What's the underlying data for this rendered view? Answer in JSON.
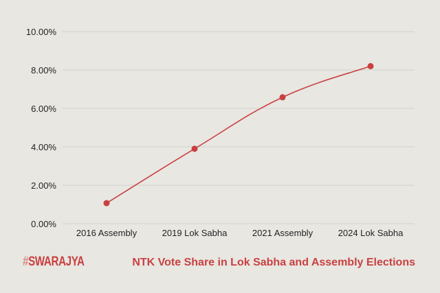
{
  "chart_data": {
    "type": "line",
    "title": "NTK Vote Share in Lok Sabha and Assembly Elections",
    "xlabel": "",
    "ylabel": "",
    "categories": [
      "2016 Assembly",
      "2019 Lok Sabha",
      "2021 Assembly",
      "2024 Lok Sabha"
    ],
    "values": [
      1.07,
      3.9,
      6.58,
      8.2
    ],
    "ylim": [
      0,
      10
    ],
    "yticks": [
      0,
      2,
      4,
      6,
      8,
      10
    ],
    "ytick_labels": [
      "0.00%",
      "2.00%",
      "4.00%",
      "6.00%",
      "8.00%",
      "10.00%"
    ],
    "grid": true,
    "smooth": true,
    "line_color": "#c94040"
  },
  "branding": {
    "hash": "#",
    "name": "SWARAJYA"
  }
}
